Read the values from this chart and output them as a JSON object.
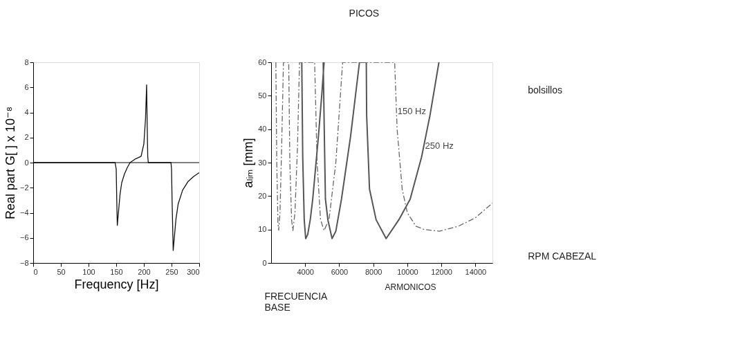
{
  "chart_data": [
    {
      "type": "line",
      "xlabel": "Frequency  [Hz]",
      "ylabel": "Real part G[ ] x 10⁻⁸",
      "series": [
        {
          "color": "#111111",
          "x": [
            0,
            148,
            150,
            151,
            152,
            154,
            157,
            160,
            165,
            170,
            175,
            185,
            195,
            200,
            203,
            205,
            206,
            207,
            208,
            249,
            250,
            251,
            253,
            255,
            258,
            262,
            270,
            280,
            290,
            300
          ],
          "values": [
            0,
            0,
            -0.5,
            -3,
            -5,
            -4,
            -2.5,
            -1.6,
            -0.9,
            -0.4,
            0,
            0.3,
            0.5,
            1.5,
            3.5,
            6.2,
            3,
            0.5,
            0,
            0,
            -0.5,
            -3,
            -7,
            -6,
            -4.5,
            -3.3,
            -2.2,
            -1.5,
            -1.1,
            -0.8
          ]
        }
      ],
      "xlim": [
        0,
        300
      ],
      "xticks": [
        0,
        50,
        100,
        150,
        200,
        250,
        300
      ],
      "ylim": [
        -8,
        8
      ],
      "yticks": [
        -8,
        -6,
        -4,
        -2,
        0,
        2,
        4,
        6,
        8
      ],
      "ref_lines": [
        {
          "axis": "y",
          "value": 0,
          "label": null
        }
      ],
      "grid": false,
      "legend": false,
      "line_style": "solid"
    },
    {
      "type": "line",
      "ylabel": "aₗᵢₘ  [mm]",
      "series": [
        {
          "color": "#555555",
          "line_style": "solid",
          "x": [
            3800,
            3856,
            3944,
            4030,
            4150,
            4300,
            4444,
            4778,
            4978,
            5110,
            5060,
            5120,
            5189,
            5333,
            5578,
            5800,
            6133,
            6667,
            7189,
            7590,
            7610,
            7778,
            8167,
            8755,
            9500,
            10167,
            10833,
            11333,
            11855
          ],
          "values": [
            60,
            31.6,
            12.9,
            7.3,
            8.5,
            13,
            19.1,
            37.9,
            50.5,
            60,
            60,
            40,
            19.1,
            12.9,
            7.3,
            9.5,
            19.1,
            37.9,
            60,
            60,
            44.2,
            22.1,
            12.9,
            7.3,
            12.9,
            19.1,
            31.6,
            44.2,
            60
          ]
        },
        {
          "color": "#666666",
          "line_style": "dashed",
          "x": [
            2278,
            2330,
            2400,
            2444,
            2520,
            2620,
            2722,
            3033,
            3100,
            3200,
            3278,
            3400,
            3550,
            3667,
            4556,
            4700,
            4900,
            5110,
            5400,
            5800,
            6200,
            9256,
            9400,
            9700,
            10000,
            10500,
            11000,
            11889,
            13000,
            14000,
            15000
          ],
          "values": [
            60,
            30,
            12,
            9.8,
            15,
            35,
            60,
            60,
            30,
            13,
            9.7,
            15,
            35,
            60,
            60,
            30,
            13,
            9.7,
            13,
            30,
            60,
            60,
            40,
            22,
            15,
            11,
            10,
            9.5,
            11,
            13.5,
            17.9
          ]
        }
      ],
      "xlim": [
        2000,
        15000
      ],
      "xticks": [
        4000,
        6000,
        8000,
        10000,
        12000,
        14000
      ],
      "ylim": [
        0,
        60
      ],
      "yticks": [
        0,
        10,
        20,
        30,
        40,
        50,
        60
      ],
      "annotations": [
        "PICOS",
        "bolsillos",
        "RPM CABEZAL",
        "FRECUENCIA BASE",
        "ARMONICOS",
        {
          "text": "150 Hz",
          "x": 9300,
          "y": 40
        },
        {
          "text": "250 Hz",
          "x": 10922,
          "y": 29.6
        }
      ],
      "grid": false,
      "legend": false
    }
  ]
}
